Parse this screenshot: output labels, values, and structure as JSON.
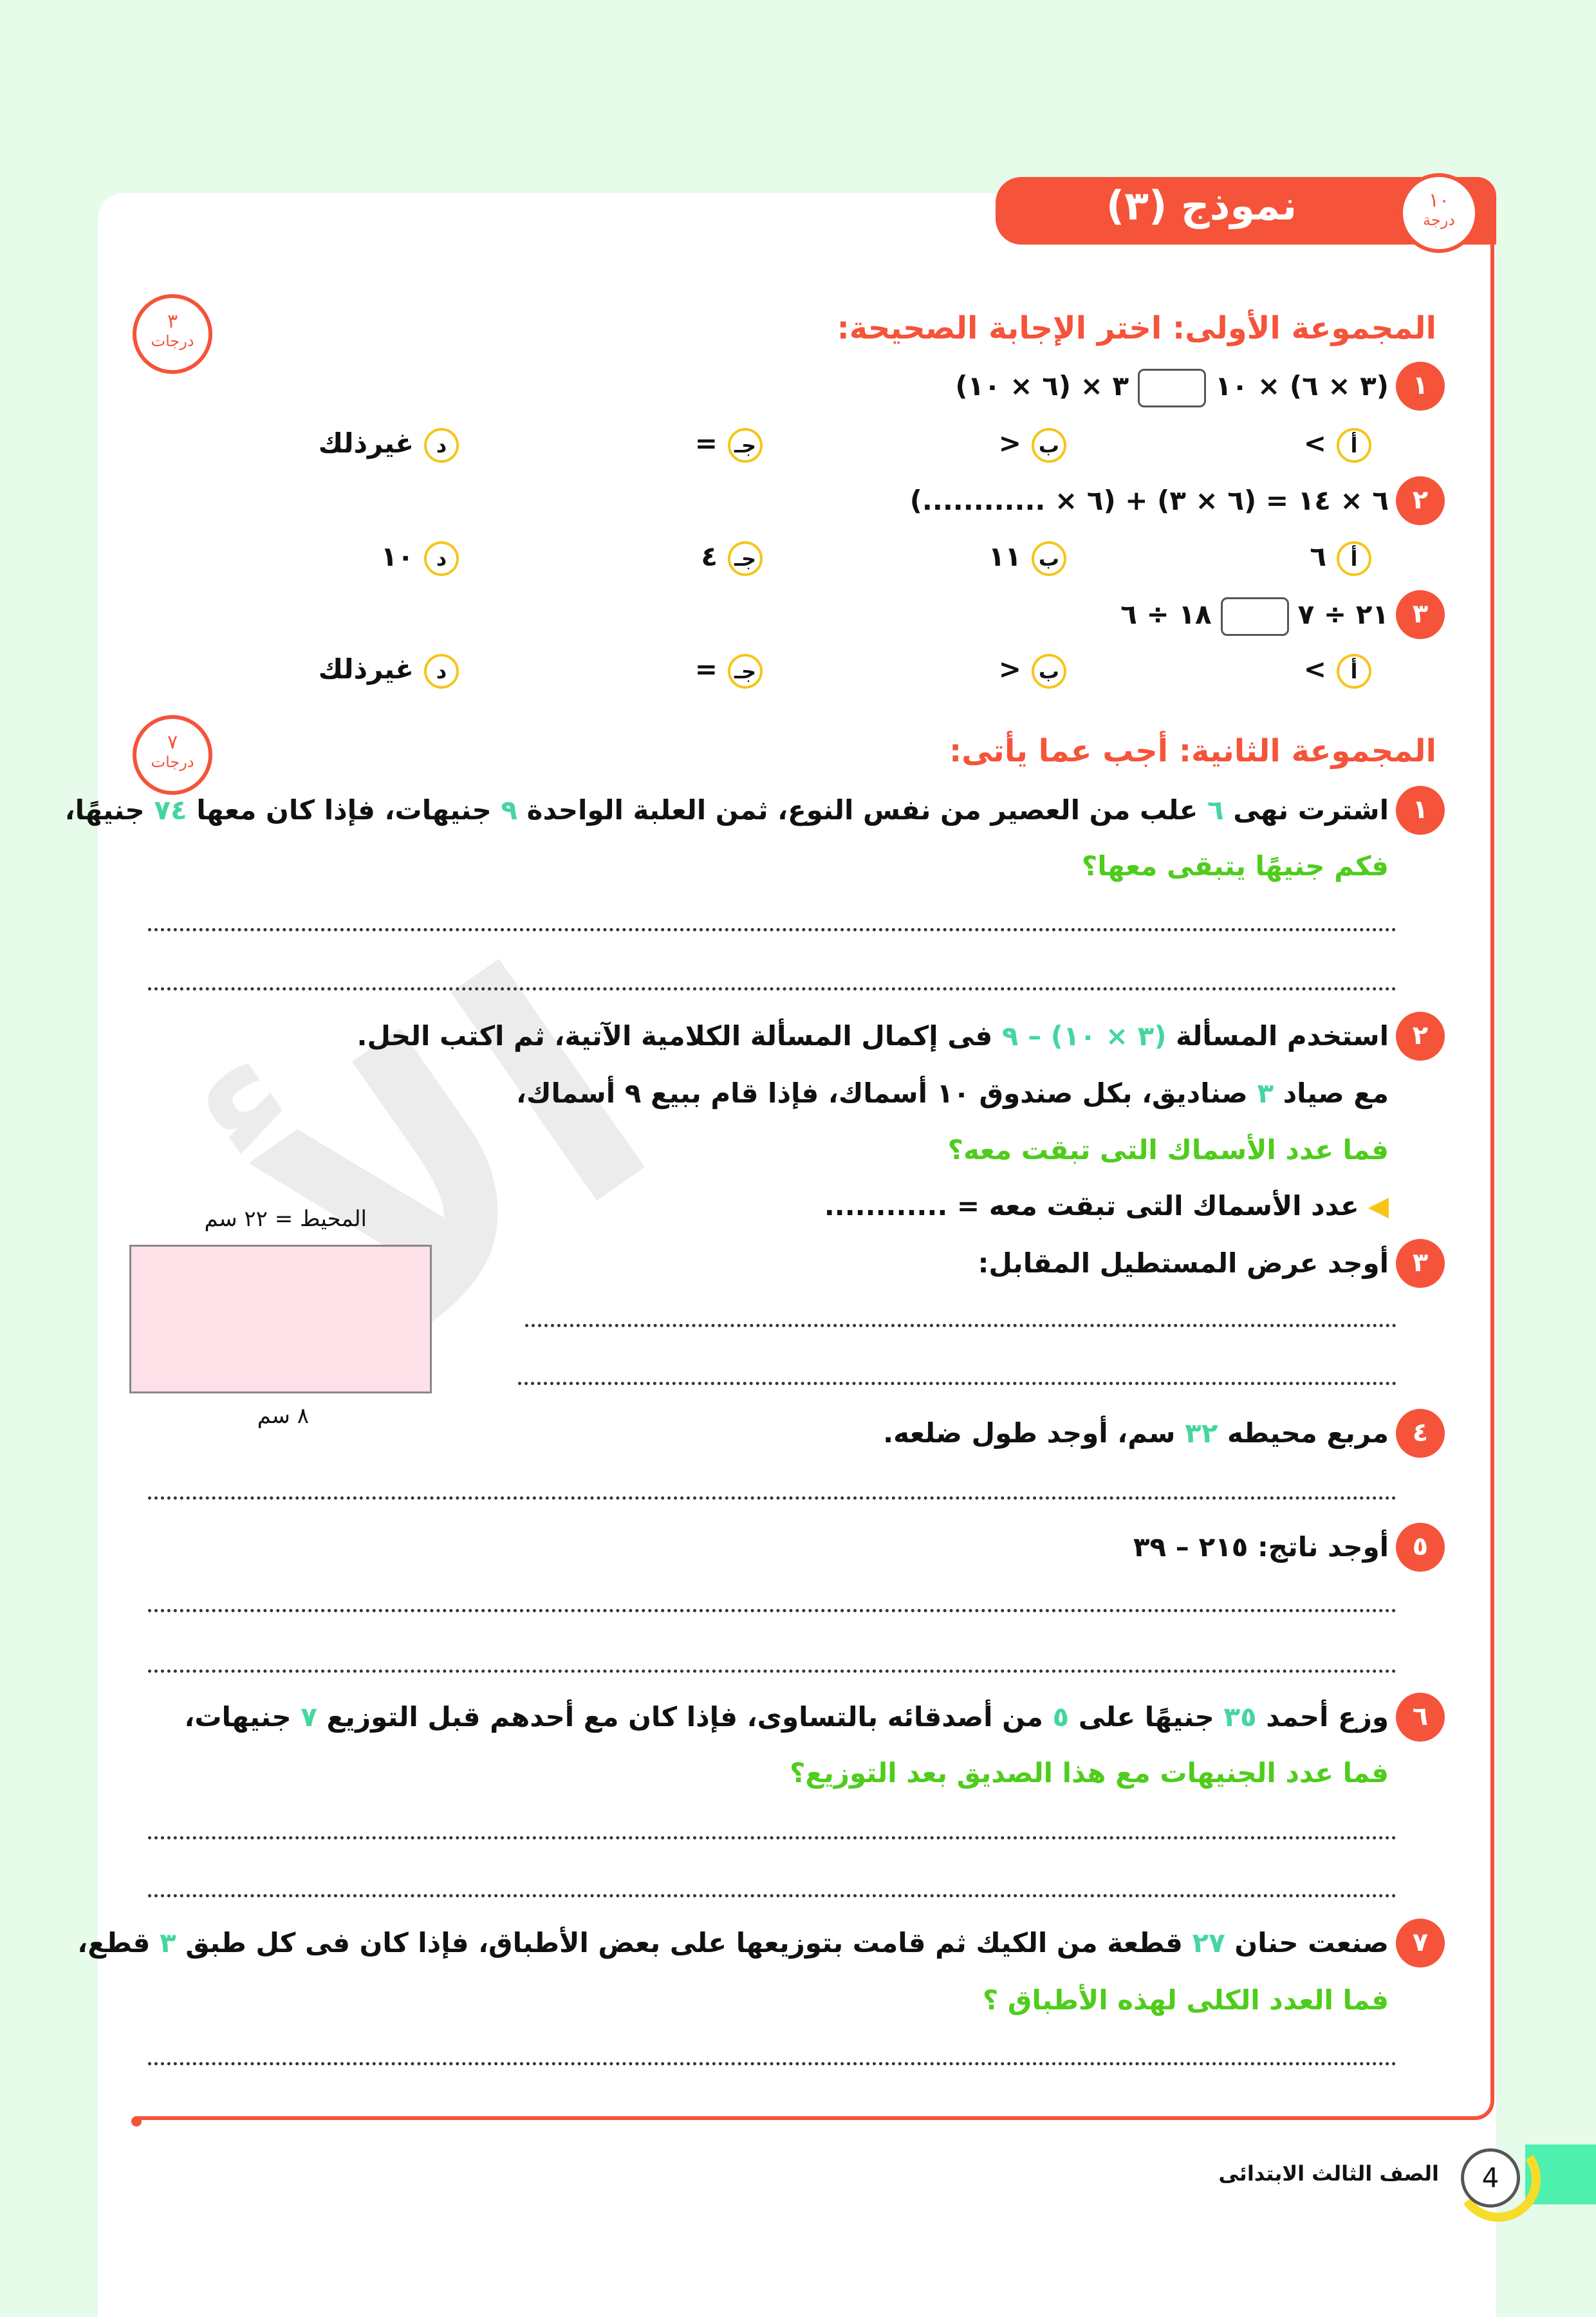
{
  "header": {
    "title": "نموذج (٣)",
    "total_score": "١٠",
    "total_unit": "درجة"
  },
  "group1": {
    "heading": "المجموعة الأولى: اختر الإجابة الصحيحة:",
    "score": "٣",
    "score_unit": "درجات",
    "questions": [
      {
        "num": "١",
        "left": "(٣ × ٦) × ١٠",
        "right": "٣ × (٦ × ١٠)",
        "options": [
          {
            "letter": "أ",
            "value": "<"
          },
          {
            "letter": "ب",
            "value": ">"
          },
          {
            "letter": "جـ",
            "value": "="
          },
          {
            "letter": "د",
            "value": "غيرذلك"
          }
        ]
      },
      {
        "num": "٢",
        "text": "٦ × ١٤ = (٦ × ٣) + (٦ × ............)",
        "options": [
          {
            "letter": "أ",
            "value": "٦"
          },
          {
            "letter": "ب",
            "value": "١١"
          },
          {
            "letter": "جـ",
            "value": "٤"
          },
          {
            "letter": "د",
            "value": "١٠"
          }
        ]
      },
      {
        "num": "٣",
        "left": "٢١ ÷ ٧",
        "right": "١٨ ÷ ٦",
        "options": [
          {
            "letter": "أ",
            "value": "<"
          },
          {
            "letter": "ب",
            "value": ">"
          },
          {
            "letter": "جـ",
            "value": "="
          },
          {
            "letter": "د",
            "value": "غيرذلك"
          }
        ]
      }
    ]
  },
  "group2": {
    "heading": "المجموعة الثانية: أجب عما يأتى:",
    "score": "٧",
    "score_unit": "درجات",
    "questions": [
      {
        "num": "١",
        "segments": [
          {
            "t": "اشترت نهى "
          },
          {
            "t": "٦",
            "c": "num"
          },
          {
            "t": " علب من العصير من نفس النوع، ثمن العلبة الواحدة "
          },
          {
            "t": "٩",
            "c": "num"
          },
          {
            "t": " جنيهات، فإذا كان معها "
          },
          {
            "t": "٧٤",
            "c": "num"
          },
          {
            "t": " جنيهًا،"
          }
        ],
        "question": "فكم جنيهًا يتبقى معها؟"
      },
      {
        "num": "٢",
        "segments": [
          {
            "t": "استخدم المسألة "
          },
          {
            "t": "(٣ × ١٠) – ٩",
            "c": "num"
          },
          {
            "t": " فى إكمال المسألة الكلامية الآتية، ثم اكتب الحل."
          }
        ],
        "line2": [
          {
            "t": "مع صياد "
          },
          {
            "t": "٣",
            "c": "num"
          },
          {
            "t": " صناديق، بكل صندوق ١٠ أسماك، فإذا قام ببيع ٩ أسماك،"
          }
        ],
        "question": "فما عدد الأسماك التى تبقت معه؟",
        "answer_prompt": "عدد الأسماك التى تبقت معه = ............"
      },
      {
        "num": "٣",
        "segments": [
          {
            "t": "أوجد عرض المستطيل المقابل:"
          }
        ],
        "perimeter_label": "المحيط = ٢٢ سم",
        "length_label": "٨ سم"
      },
      {
        "num": "٤",
        "segments": [
          {
            "t": "مربع محيطه "
          },
          {
            "t": "٣٢",
            "c": "num"
          },
          {
            "t": " سم، أوجد طول ضلعه."
          }
        ]
      },
      {
        "num": "٥",
        "segments": [
          {
            "t": "أوجد ناتج: ٢١٥ – ٣٩"
          }
        ]
      },
      {
        "num": "٦",
        "segments": [
          {
            "t": "وزع أحمد "
          },
          {
            "t": "٣٥",
            "c": "num"
          },
          {
            "t": " جنيهًا على "
          },
          {
            "t": "٥",
            "c": "num"
          },
          {
            "t": " من أصدقائه بالتساوى، فإذا كان مع أحدهم قبل التوزيع "
          },
          {
            "t": "٧",
            "c": "num"
          },
          {
            "t": " جنيهات،"
          }
        ],
        "question": "فما عدد الجنيهات مع هذا الصديق بعد التوزيع؟"
      },
      {
        "num": "٧",
        "segments": [
          {
            "t": "صنعت حنان "
          },
          {
            "t": "٢٧",
            "c": "num"
          },
          {
            "t": " قطعة من الكيك ثم قامت بتوزيعها على بعض الأطباق، فإذا كان فى كل طبق "
          },
          {
            "t": "٣",
            "c": "num"
          },
          {
            "t": " قطع،"
          }
        ],
        "question": "فما العدد الكلى لهذه الأطباق ؟"
      }
    ]
  },
  "footer": {
    "page_number": "4",
    "grade": "الصف الثالث الابتدائى"
  },
  "watermark": "الأضواء",
  "colors": {
    "accent": "#f5533a",
    "question_green": "#4fcc1c",
    "number_teal": "#45d6a0",
    "option_ring": "#f5c518",
    "background": "#e6fbe9"
  }
}
